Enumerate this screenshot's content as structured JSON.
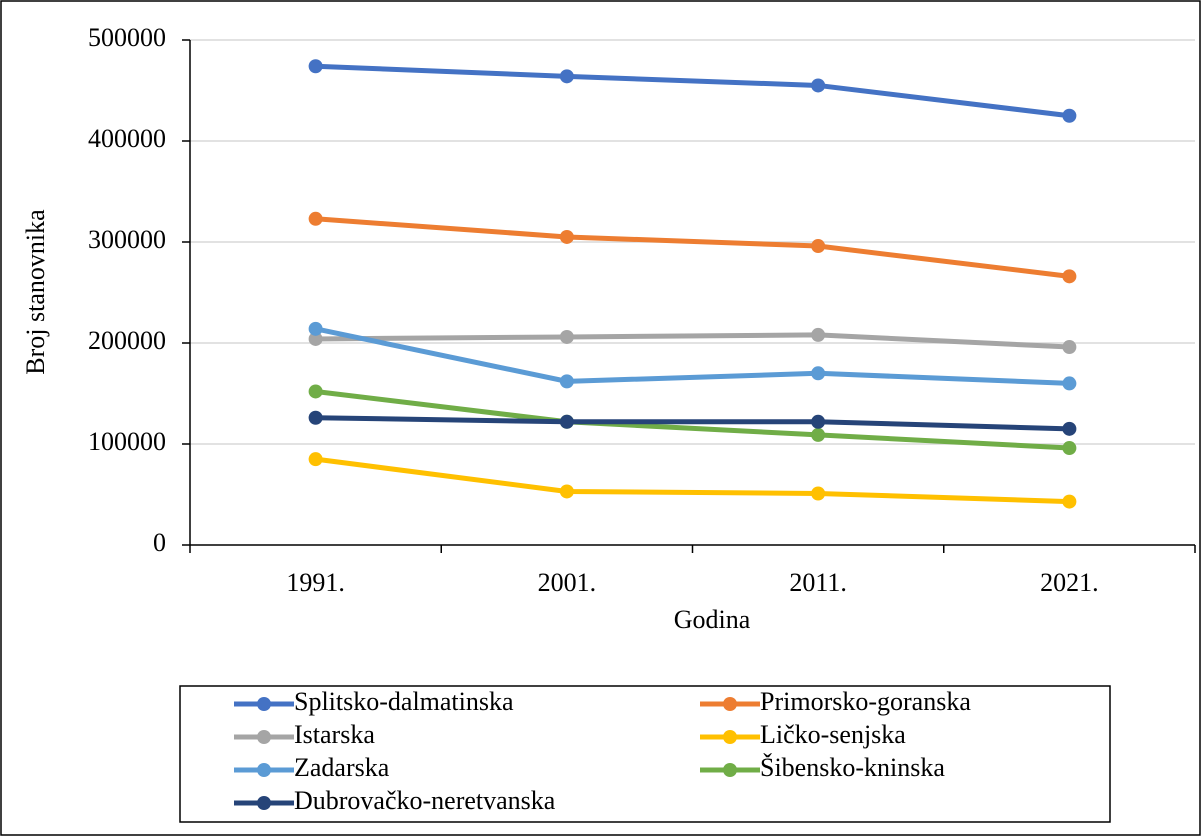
{
  "chart_data": {
    "type": "line",
    "x_label": "Godina",
    "y_label": "Broj stanovnika",
    "categories": [
      "1991.",
      "2001.",
      "2011.",
      "2021."
    ],
    "ylim": [
      0,
      500000
    ],
    "yticks": [
      0,
      100000,
      200000,
      300000,
      400000,
      500000
    ],
    "grid": true,
    "series": [
      {
        "name": "Splitsko-dalmatinska",
        "color": "#4472c4",
        "values": [
          474000,
          464000,
          455000,
          425000
        ]
      },
      {
        "name": "Primorsko-goranska",
        "color": "#ed7d31",
        "values": [
          323000,
          305000,
          296000,
          266000
        ]
      },
      {
        "name": "Istarska",
        "color": "#a5a5a5",
        "values": [
          204000,
          206000,
          208000,
          196000
        ]
      },
      {
        "name": "Ličko-senjska",
        "color": "#ffc000",
        "values": [
          85000,
          53000,
          51000,
          43000
        ]
      },
      {
        "name": "Zadarska",
        "color": "#5b9bd5",
        "values": [
          214000,
          162000,
          170000,
          160000
        ]
      },
      {
        "name": "Šibensko-kninska",
        "color": "#70ad47",
        "values": [
          152000,
          122000,
          109000,
          96000
        ]
      },
      {
        "name": "Dubrovačko-neretvanska",
        "color": "#264478",
        "values": [
          126000,
          122000,
          122000,
          115000
        ]
      }
    ]
  }
}
